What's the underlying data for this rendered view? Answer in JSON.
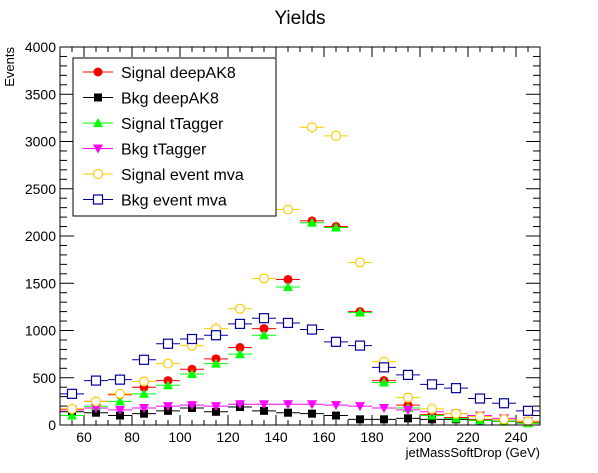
{
  "chart_data": {
    "type": "scatter",
    "title": "Yields",
    "xlabel": "jetMassSoftDrop (GeV)",
    "ylabel": "Events",
    "xlim": [
      50,
      250
    ],
    "ylim": [
      0,
      4000
    ],
    "x_ticks": [
      60,
      80,
      100,
      120,
      140,
      160,
      180,
      200,
      220,
      240
    ],
    "y_ticks": [
      0,
      500,
      1000,
      1500,
      2000,
      2500,
      3000,
      3500,
      4000
    ],
    "bin_width": 10,
    "legend_position": "top-left",
    "grid": false,
    "x": [
      55,
      65,
      75,
      85,
      95,
      105,
      115,
      125,
      135,
      145,
      155,
      165,
      175,
      185,
      195,
      205,
      215,
      225,
      235,
      245
    ],
    "series": [
      {
        "name": "Signal deepAK8",
        "color": "#ff0000",
        "marker": "circle-filled",
        "values": [
          170,
          250,
          320,
          400,
          470,
          590,
          700,
          820,
          1020,
          1540,
          2160,
          2100,
          1200,
          470,
          210,
          110,
          80,
          60,
          40,
          30
        ]
      },
      {
        "name": "Bkg deepAK8",
        "color": "#000000",
        "marker": "square-filled",
        "values": [
          140,
          130,
          100,
          120,
          150,
          180,
          140,
          190,
          150,
          130,
          120,
          100,
          60,
          60,
          70,
          60,
          60,
          50,
          40,
          20
        ]
      },
      {
        "name": "Signal tTagger",
        "color": "#00ff00",
        "marker": "triangle-up-filled",
        "values": [
          100,
          200,
          250,
          330,
          420,
          540,
          650,
          750,
          950,
          1460,
          2140,
          2090,
          1190,
          450,
          180,
          100,
          70,
          50,
          40,
          20
        ]
      },
      {
        "name": "Bkg tTagger",
        "color": "#ff00ff",
        "marker": "triangle-down-filled",
        "values": [
          160,
          180,
          160,
          180,
          200,
          210,
          200,
          220,
          220,
          220,
          220,
          210,
          200,
          180,
          160,
          140,
          120,
          100,
          70,
          40
        ]
      },
      {
        "name": "Signal event mva",
        "color": "#ffcc00",
        "marker": "circle-open",
        "values": [
          170,
          250,
          330,
          460,
          650,
          840,
          1020,
          1230,
          1550,
          2280,
          3150,
          3060,
          1720,
          670,
          290,
          170,
          120,
          90,
          60,
          40
        ]
      },
      {
        "name": "Bkg event mva",
        "color": "#000099",
        "marker": "square-open",
        "values": [
          330,
          470,
          480,
          690,
          860,
          910,
          950,
          1070,
          1130,
          1080,
          1010,
          880,
          840,
          610,
          530,
          430,
          390,
          280,
          230,
          150
        ]
      }
    ]
  }
}
